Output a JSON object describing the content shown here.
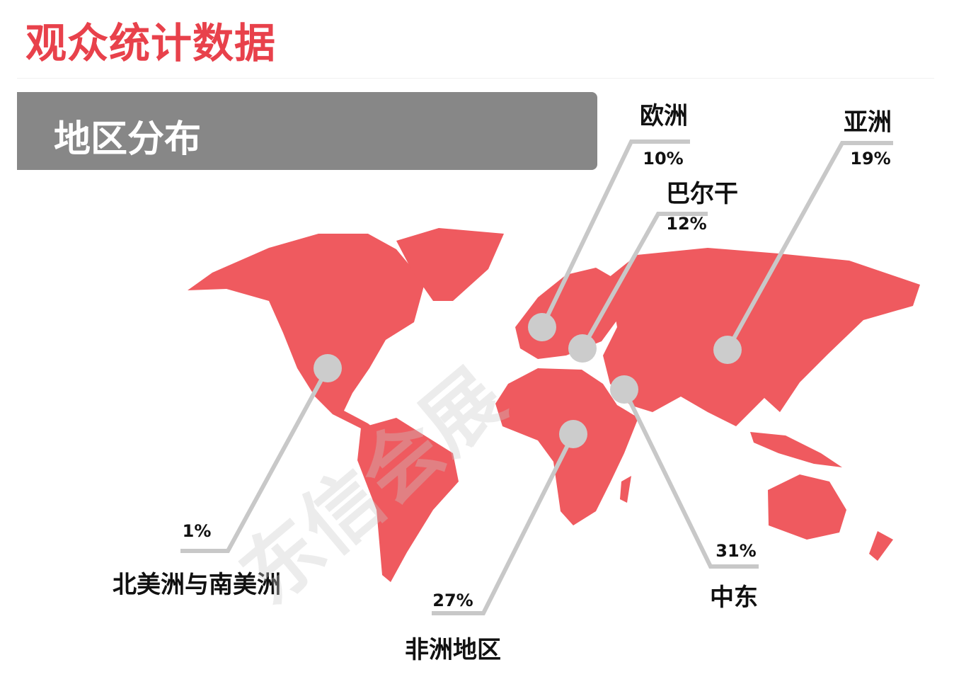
{
  "title": "观众统计数据",
  "section_title": "地区分布",
  "colors": {
    "title": "#e8414b",
    "map": "#ef5a5f",
    "banner": "#878787",
    "leader": "#c8c8c8",
    "marker": "#cccccc"
  },
  "regions": [
    {
      "name": "欧洲",
      "percent": "10%"
    },
    {
      "name": "巴尔干",
      "percent": "12%"
    },
    {
      "name": "亚洲",
      "percent": "19%"
    },
    {
      "name": "北美洲与南美洲",
      "percent": "1%"
    },
    {
      "name": "非洲地区",
      "percent": "27%"
    },
    {
      "name": "中东",
      "percent": "31%"
    }
  ],
  "watermark": "东信会展"
}
